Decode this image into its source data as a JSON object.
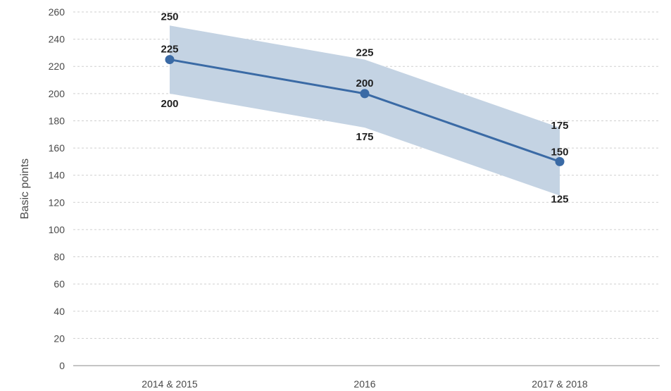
{
  "chart_data": {
    "type": "line",
    "categories": [
      "2014 & 2015",
      "2016",
      "2017 & 2018"
    ],
    "series": [
      {
        "values": [
          225,
          200,
          150
        ]
      }
    ],
    "range": {
      "upper": [
        250,
        225,
        175
      ],
      "lower": [
        200,
        175,
        125
      ]
    },
    "data_labels": {
      "main": [
        "225",
        "200",
        "150"
      ],
      "upper": [
        "250",
        "225",
        "175"
      ],
      "lower": [
        "200",
        "175",
        "125"
      ]
    },
    "ylabel": "Basic points",
    "xlabel": "",
    "ylim": [
      0,
      260
    ],
    "yticks": [
      0,
      20,
      40,
      60,
      80,
      100,
      120,
      140,
      160,
      180,
      200,
      220,
      240,
      260
    ],
    "grid": true,
    "colors": {
      "line": "#3a6aa5",
      "band": "#c4d3e3",
      "marker": "#3a6aa5"
    }
  }
}
